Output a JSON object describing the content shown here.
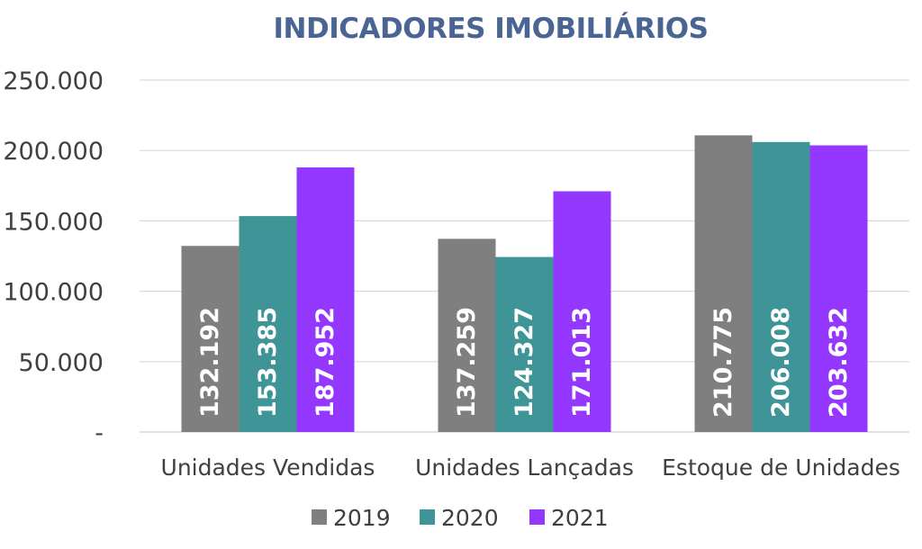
{
  "chart_data": {
    "type": "bar",
    "title": "INDICADORES IMOBILIÁRIOS",
    "categories": [
      "Unidades Vendidas",
      "Unidades Lançadas",
      "Estoque de Unidades"
    ],
    "series": [
      {
        "name": "2019",
        "color": "#7f7f7f",
        "values": [
          132192,
          137259,
          210775
        ],
        "labels": [
          "132.192",
          "137.259",
          "210.775"
        ]
      },
      {
        "name": "2020",
        "color": "#3e9497",
        "values": [
          153385,
          124327,
          206008
        ],
        "labels": [
          "153.385",
          "124.327",
          "206.008"
        ]
      },
      {
        "name": "2021",
        "color": "#9437ff",
        "values": [
          187952,
          171013,
          203632
        ],
        "labels": [
          "187.952",
          "171.013",
          "203.632"
        ]
      }
    ],
    "yticks": [
      {
        "value": 0,
        "label": "-"
      },
      {
        "value": 50000,
        "label": "50.000"
      },
      {
        "value": 100000,
        "label": "100.000"
      },
      {
        "value": 150000,
        "label": "150.000"
      },
      {
        "value": 200000,
        "label": "200.000"
      },
      {
        "value": 250000,
        "label": "250.000"
      }
    ],
    "ylim": [
      0,
      250000
    ],
    "grid": true,
    "legend": "bottom",
    "xlabel": "",
    "ylabel": ""
  }
}
